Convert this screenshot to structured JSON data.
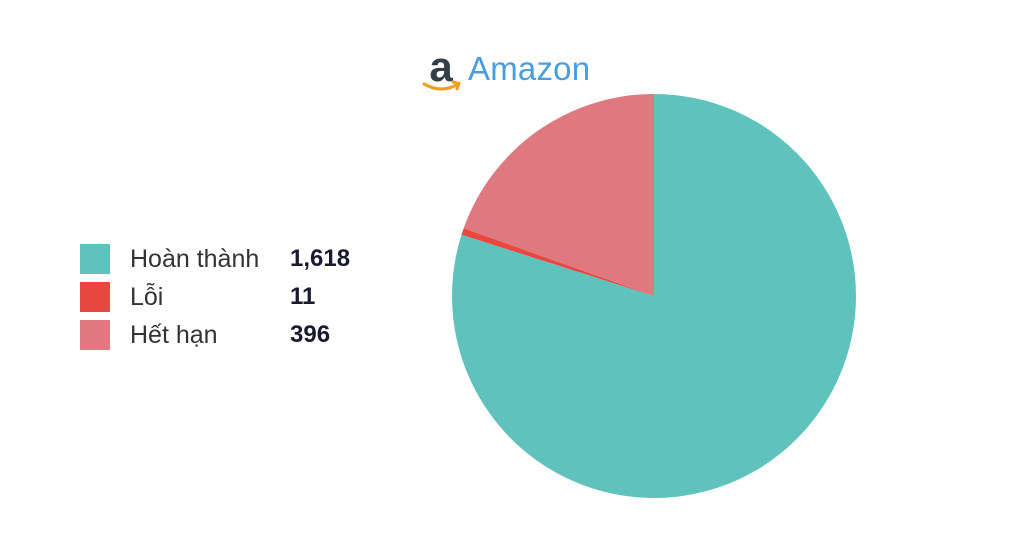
{
  "chart_data": {
    "type": "pie",
    "title": "Amazon",
    "title_icon": "amazon-logo-icon",
    "legend_placement": "left",
    "start_angle": "top (12 o'clock)",
    "direction": "clockwise",
    "slices": [
      {
        "label": "Hoàn thành",
        "value": 1618,
        "display_value": "1,618",
        "color": "#5fc2bc"
      },
      {
        "label": "Lỗi",
        "value": 11,
        "display_value": "11",
        "color": "#e8483f"
      },
      {
        "label": "Hết hạn",
        "value": 396,
        "display_value": "396",
        "color": "#e07880"
      }
    ]
  }
}
